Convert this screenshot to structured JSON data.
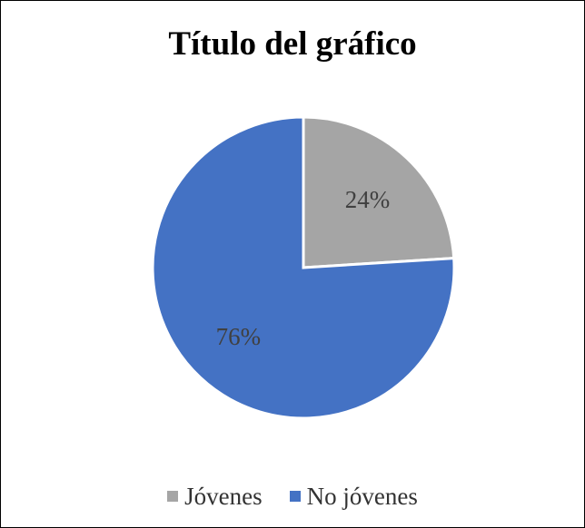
{
  "chart_data": {
    "type": "pie",
    "title": "Título del gráfico",
    "categories": [
      "Jóvenes",
      "No jóvenes"
    ],
    "values": [
      24,
      76
    ],
    "data_labels": [
      "24%",
      "76%"
    ],
    "colors": [
      "#A5A5A5",
      "#4472C4"
    ],
    "legend_position": "bottom"
  }
}
